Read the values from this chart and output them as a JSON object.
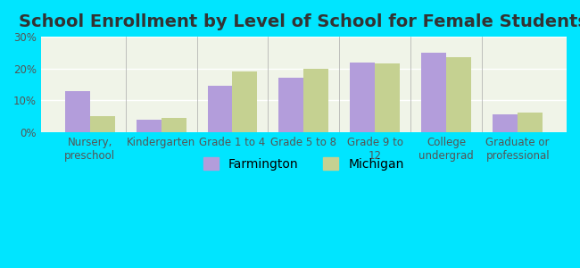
{
  "title": "School Enrollment by Level of School for Female Students",
  "categories": [
    "Nursery,\npreschool",
    "Kindergarten",
    "Grade 1 to 4",
    "Grade 5 to 8",
    "Grade 9 to\n12",
    "College\nundergrad",
    "Graduate or\nprofessional"
  ],
  "farmington": [
    13.0,
    4.0,
    14.5,
    17.0,
    22.0,
    25.0,
    5.5
  ],
  "michigan": [
    5.0,
    4.5,
    19.0,
    20.0,
    21.5,
    23.5,
    6.0
  ],
  "farmington_color": "#b39ddb",
  "michigan_color": "#c5d191",
  "background_outer": "#00e5ff",
  "background_inner": "#f0f4e8",
  "ylim": [
    0,
    30
  ],
  "yticks": [
    0,
    10,
    20,
    30
  ],
  "ytick_labels": [
    "0%",
    "10%",
    "20%",
    "30%"
  ],
  "legend_labels": [
    "Farmington",
    "Michigan"
  ],
  "title_fontsize": 14,
  "tick_fontsize": 8.5,
  "legend_fontsize": 10
}
